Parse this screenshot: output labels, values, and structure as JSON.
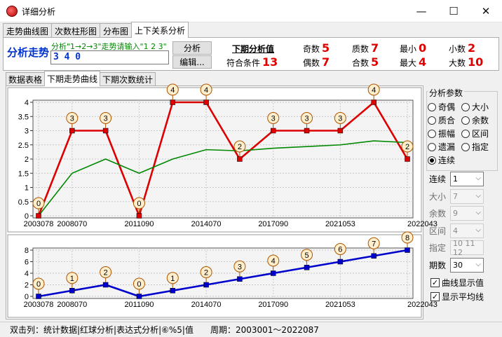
{
  "window": {
    "title": "详细分析",
    "minimize": "—",
    "maximize": "☐",
    "close": "✕"
  },
  "tabs": [
    "走势曲线图",
    "次数柱形图",
    "分布图",
    "上下关系分析"
  ],
  "active_tab": 3,
  "analysis": {
    "title": "分析走势",
    "hint": "分析\"1→2→3\"走势请输入\"1 2 3\"",
    "input_value": "3 4 0",
    "analyze_button": "分析",
    "edit_button": "编辑...",
    "next_label": "下期分析值",
    "match_label": "符合条件",
    "match_value": "13"
  },
  "stats": [
    {
      "label": "奇数",
      "value": "5"
    },
    {
      "label": "质数",
      "value": "7"
    },
    {
      "label": "最小",
      "value": "0"
    },
    {
      "label": "小数",
      "value": "2"
    },
    {
      "label": "偶数",
      "value": "7"
    },
    {
      "label": "合数",
      "value": "5"
    },
    {
      "label": "最大",
      "value": "4"
    },
    {
      "label": "大数",
      "value": "10"
    }
  ],
  "subtabs": [
    "数据表格",
    "下期走势曲线",
    "下期次数统计"
  ],
  "active_subtab": 1,
  "params": {
    "group_title": "分析参数",
    "radios": [
      {
        "label": "奇偶",
        "checked": false
      },
      {
        "label": "大小",
        "checked": false
      },
      {
        "label": "质合",
        "checked": false
      },
      {
        "label": "余数",
        "checked": false
      },
      {
        "label": "振幅",
        "checked": false
      },
      {
        "label": "区间",
        "checked": false
      },
      {
        "label": "遗漏",
        "checked": false
      },
      {
        "label": "指定",
        "checked": false
      },
      {
        "label": "连续",
        "checked": true
      }
    ],
    "rows": [
      {
        "label": "连续",
        "value": "1",
        "enabled": true
      },
      {
        "label": "大小",
        "value": "7",
        "enabled": false
      },
      {
        "label": "余数",
        "value": "9",
        "enabled": false
      },
      {
        "label": "区间",
        "value": "4",
        "enabled": false
      },
      {
        "label": "指定",
        "value": "10 11 12",
        "enabled": false
      },
      {
        "label": "期数",
        "value": "30",
        "enabled": true
      }
    ],
    "checkboxes": [
      {
        "label": "曲线显示值",
        "checked": true
      },
      {
        "label": "显示平均线",
        "checked": true
      }
    ]
  },
  "status": {
    "left": "双击列：统计数据|红球分析|表达式分析|⑥%5|值",
    "period_label": "周期：",
    "period_value": "2003001～2022087"
  },
  "colors": {
    "line": "#dd0000",
    "avg": "#008800",
    "cum": "#0000cc",
    "marker_fill": "#ffeecc",
    "marker_stroke": "#aa5500"
  },
  "chart_data": [
    {
      "type": "line",
      "x_ticks": [
        "2003078",
        "2008070",
        "2011090",
        "2014070",
        "2017090",
        "2021053",
        "2022043"
      ],
      "y_ticks": [
        "0",
        "0.5",
        "1",
        "1.5",
        "2",
        "2.5",
        "3",
        "3.5",
        "4"
      ],
      "ylim": [
        0,
        4
      ],
      "series": [
        {
          "values": [
            0,
            3,
            3,
            0,
            4,
            4,
            2,
            3,
            3,
            3,
            4,
            2
          ]
        },
        {
          "values": [
            0,
            1.5,
            2,
            1.5,
            2,
            2.33,
            2.29,
            2.38,
            2.44,
            2.5,
            2.64,
            2.58
          ]
        }
      ],
      "grid": true
    },
    {
      "type": "line",
      "x_ticks": [
        "2003078",
        "2008070",
        "2011090",
        "2014070",
        "2017090",
        "2021053",
        "2022043"
      ],
      "y_ticks": [
        "0",
        "2",
        "4",
        "6",
        "8"
      ],
      "ylim": [
        0,
        8
      ],
      "series": [
        {
          "values": [
            0,
            1,
            2,
            0,
            1,
            2,
            3,
            4,
            5,
            6,
            7,
            8
          ]
        }
      ],
      "grid": true
    }
  ]
}
